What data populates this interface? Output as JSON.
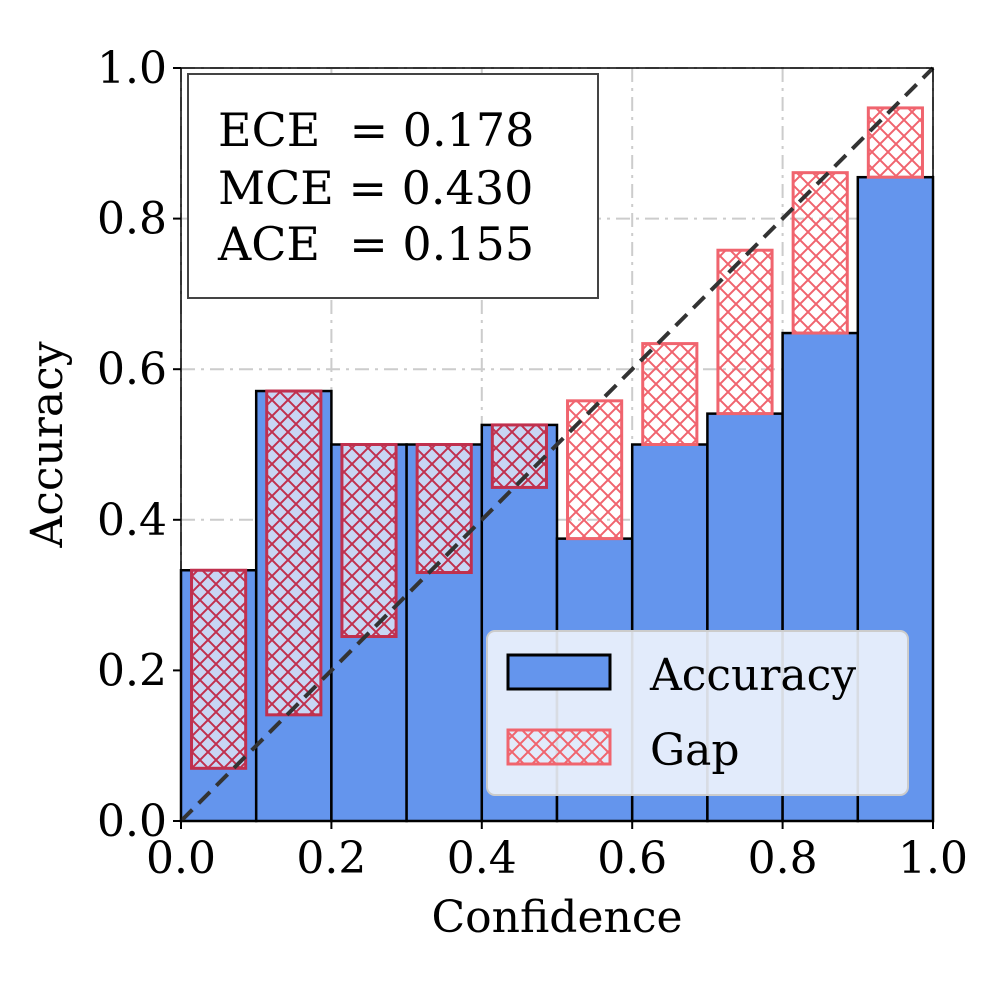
{
  "chart_data": {
    "type": "bar",
    "xlabel": "Confidence",
    "ylabel": "Accuracy",
    "xlim": [
      0,
      1
    ],
    "ylim": [
      0,
      1
    ],
    "x_ticks": [
      "0.0",
      "0.2",
      "0.4",
      "0.6",
      "0.8",
      "1.0"
    ],
    "y_ticks": [
      "0.0",
      "0.2",
      "0.4",
      "0.6",
      "0.8",
      "1.0"
    ],
    "grid": true,
    "bin_width": 0.1,
    "bins": [
      {
        "left": 0.0,
        "accuracy": 0.333,
        "confidence": 0.07
      },
      {
        "left": 0.1,
        "accuracy": 0.571,
        "confidence": 0.141
      },
      {
        "left": 0.2,
        "accuracy": 0.5,
        "confidence": 0.245
      },
      {
        "left": 0.3,
        "accuracy": 0.5,
        "confidence": 0.33
      },
      {
        "left": 0.4,
        "accuracy": 0.526,
        "confidence": 0.443
      },
      {
        "left": 0.5,
        "accuracy": 0.375,
        "confidence": 0.558
      },
      {
        "left": 0.6,
        "accuracy": 0.5,
        "confidence": 0.634
      },
      {
        "left": 0.7,
        "accuracy": 0.541,
        "confidence": 0.758
      },
      {
        "left": 0.8,
        "accuracy": 0.648,
        "confidence": 0.861
      },
      {
        "left": 0.9,
        "accuracy": 0.855,
        "confidence": 0.947
      }
    ],
    "diagonal": true,
    "metrics": [
      {
        "label": "ECE  = 0.178"
      },
      {
        "label": "MCE = 0.430"
      },
      {
        "label": "ACE  = 0.155"
      }
    ],
    "legend": {
      "position": "lower-right",
      "items": [
        {
          "label": "Accuracy",
          "kind": "accuracy"
        },
        {
          "label": "Gap",
          "kind": "gap"
        }
      ]
    },
    "colors": {
      "accuracy": "#6495ed",
      "gap_edge": "#f0646e",
      "gap_edge_dark": "#c0304e",
      "gap_fill_over": "#c8d6f4",
      "diagonal": "#333333"
    }
  }
}
